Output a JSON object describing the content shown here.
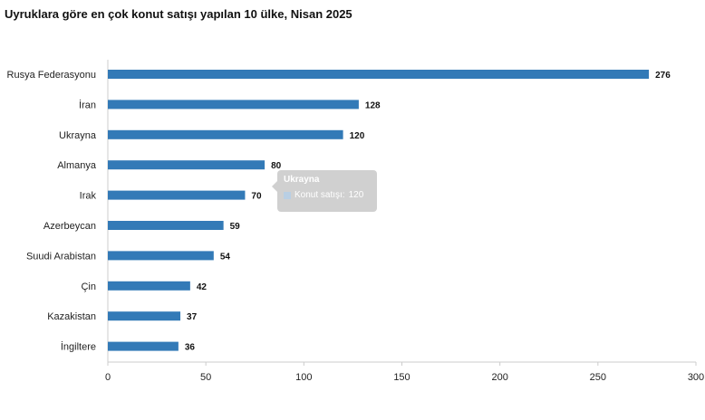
{
  "chart_data": {
    "type": "bar",
    "orientation": "horizontal",
    "title": "Uyruklara göre en çok konut satışı yapılan 10 ülke, Nisan 2025",
    "categories": [
      "Rusya Federasyonu",
      "İran",
      "Ukrayna",
      "Almanya",
      "Irak",
      "Azerbeycan",
      "Suudi Arabistan",
      "Çin",
      "Kazakistan",
      "İngiltere"
    ],
    "series": [
      {
        "name": "Konut satışı",
        "values": [
          276,
          128,
          120,
          80,
          70,
          59,
          54,
          42,
          37,
          36
        ]
      }
    ],
    "xlim": [
      0,
      300
    ],
    "x_ticks": [
      "0",
      "50",
      "100",
      "150",
      "200",
      "250",
      "300"
    ],
    "grid": false,
    "data_labels": true,
    "bar_color": "#337ab7"
  },
  "tooltip": {
    "title": "Ukrayna",
    "series_label": "Konut satışı:",
    "value": "120"
  }
}
